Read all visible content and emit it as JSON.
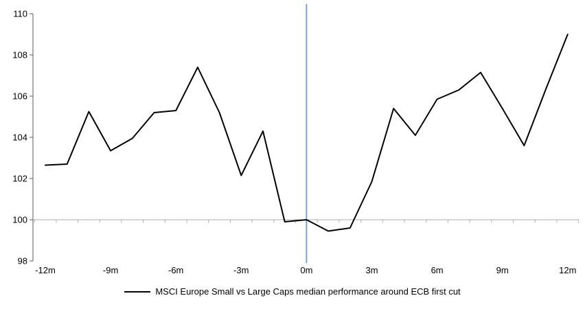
{
  "chart_data": {
    "type": "line",
    "title": "",
    "xlabel": "",
    "ylabel": "",
    "categories": [
      "-12m",
      "-11m",
      "-10m",
      "-9m",
      "-8m",
      "-7m",
      "-6m",
      "-5m",
      "-4m",
      "-3m",
      "-2m",
      "-1m",
      "0m",
      "1m",
      "2m",
      "3m",
      "4m",
      "5m",
      "6m",
      "7m",
      "8m",
      "9m",
      "10m",
      "11m",
      "12m"
    ],
    "x_months": [
      -12,
      -11,
      -10,
      -9,
      -8,
      -7,
      -6,
      -5,
      -4,
      -3,
      -2,
      -1,
      0,
      1,
      2,
      3,
      4,
      5,
      6,
      7,
      8,
      9,
      10,
      11,
      12
    ],
    "series": [
      {
        "name": "MSCI Europe Small vs Large Caps median performance around ECB first cut",
        "values": [
          102.65,
          102.7,
          105.25,
          103.35,
          103.95,
          105.2,
          105.3,
          107.4,
          105.2,
          102.15,
          104.3,
          99.9,
          100.0,
          99.45,
          99.6,
          101.85,
          105.4,
          104.1,
          105.85,
          106.3,
          107.15,
          105.4,
          103.6,
          106.35,
          109.0
        ]
      }
    ],
    "ylim": [
      98,
      110
    ],
    "ytick_step": 2,
    "yticks": [
      "110",
      "108",
      "106",
      "104",
      "102",
      "100",
      "98"
    ],
    "ytick_values": [
      110,
      108,
      106,
      104,
      102,
      100,
      98
    ],
    "xtick_labels": [
      "-12m",
      "-9m",
      "-6m",
      "-3m",
      "0m",
      "3m",
      "6m",
      "9m",
      "12m"
    ],
    "xtick_label_months": [
      -12,
      -9,
      -6,
      -3,
      0,
      3,
      6,
      9,
      12
    ],
    "grid": "single horizontal line at 100 (category axis crosses at 100, minor ticks each month)",
    "legend_position": "bottom-center",
    "annotations": [
      {
        "kind": "vertical-event-line",
        "x_month": 0,
        "color": "#74A3D6"
      }
    ],
    "colors": {
      "series_line": "#000000",
      "event_line": "#74A3D6",
      "y_axis_line": "#595959",
      "x_axis_line": "#ACACAC",
      "label_text": "#000000"
    }
  }
}
